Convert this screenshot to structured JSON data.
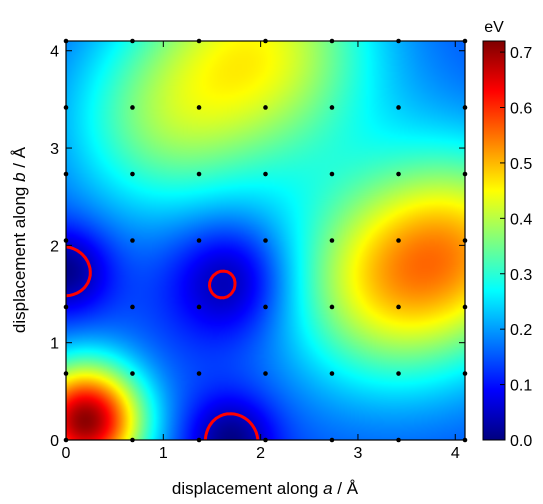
{
  "chart_data": {
    "type": "heatmap",
    "title": "",
    "xlabel_prefix": "displacement along ",
    "xlabel_var": "a",
    "xlabel_suffix": " / Å",
    "ylabel_prefix": "displacement along ",
    "ylabel_var": "b",
    "ylabel_suffix": " / Å",
    "xlim": [
      0,
      4.1
    ],
    "ylim": [
      0,
      4.1
    ],
    "x_ticks": [
      0,
      1,
      2,
      3,
      4
    ],
    "y_ticks": [
      0,
      1,
      2,
      3,
      4
    ],
    "x_tick_labels": [
      "0",
      "1",
      "2",
      "3",
      "4"
    ],
    "y_tick_labels": [
      "0",
      "1",
      "2",
      "3",
      "4"
    ],
    "colorbar": {
      "unit": "eV",
      "min": 0.0,
      "max": 0.72,
      "ticks": [
        0.0,
        0.1,
        0.2,
        0.3,
        0.4,
        0.5,
        0.6,
        0.7
      ],
      "tick_labels": [
        "0.0",
        "0.1",
        "0.2",
        "0.3",
        "0.4",
        "0.5",
        "0.6",
        "0.7"
      ],
      "colormap": [
        "#00007f",
        "#0000ff",
        "#007fff",
        "#00ffff",
        "#7fff7f",
        "#ffff00",
        "#ff7f00",
        "#ff0000",
        "#7f0000"
      ]
    },
    "sample_points": {
      "x": [
        0,
        0.683,
        1.367,
        2.05,
        2.733,
        3.417,
        4.1
      ],
      "y": [
        0,
        0.683,
        1.367,
        2.05,
        2.733,
        3.417,
        4.1
      ]
    },
    "energy_features": [
      {
        "kind": "maximum",
        "x": 0.2,
        "y": 0.2,
        "value": 0.71
      },
      {
        "kind": "maximum",
        "x": 2.0,
        "y": 4.0,
        "value": 0.43
      },
      {
        "kind": "maximum",
        "x": 4.1,
        "y": 2.0,
        "value": 0.42
      },
      {
        "kind": "maximum",
        "x": 3.2,
        "y": 1.55,
        "value": 0.38
      },
      {
        "kind": "maximum",
        "x": 0.9,
        "y": 3.2,
        "value": 0.3
      },
      {
        "kind": "minimum",
        "x": 1.7,
        "y": 1.65,
        "value": 0.0
      },
      {
        "kind": "minimum",
        "x": 0.0,
        "y": 1.75,
        "value": 0.0
      },
      {
        "kind": "minimum",
        "x": 1.7,
        "y": 0.0,
        "value": 0.0
      }
    ],
    "contour_color": "#ff0000",
    "contour_value": 0.05,
    "grid": false
  }
}
